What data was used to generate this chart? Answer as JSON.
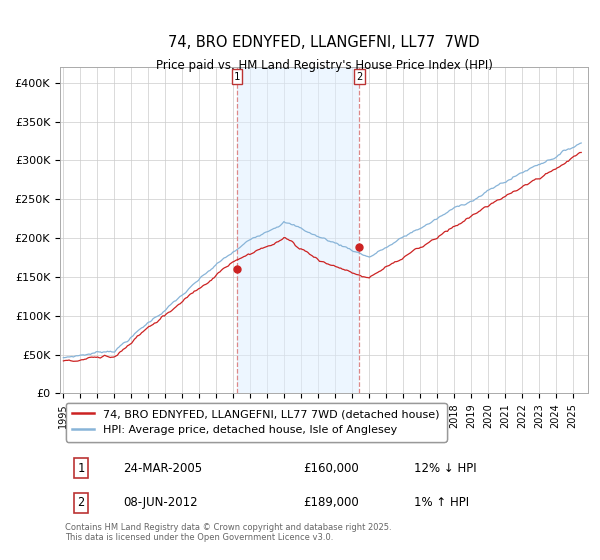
{
  "title": "74, BRO EDNYFED, LLANGEFNI, LL77  7WD",
  "subtitle": "Price paid vs. HM Land Registry's House Price Index (HPI)",
  "ylim": [
    0,
    420000
  ],
  "yticks": [
    0,
    50000,
    100000,
    150000,
    200000,
    250000,
    300000,
    350000,
    400000
  ],
  "ytick_labels": [
    "£0",
    "£50K",
    "£100K",
    "£150K",
    "£200K",
    "£250K",
    "£300K",
    "£350K",
    "£400K"
  ],
  "hpi_color": "#88b4d8",
  "price_color": "#cc2222",
  "shaded_color": "#ddeeff",
  "dashed_color": "#dd8888",
  "marker1_x": 2005.23,
  "marker2_x": 2012.44,
  "marker1_price": 160000,
  "marker2_price": 189000,
  "legend_line1": "74, BRO EDNYFED, LLANGEFNI, LL77 7WD (detached house)",
  "legend_line2": "HPI: Average price, detached house, Isle of Anglesey",
  "entry1_num": "1",
  "entry1_date": "24-MAR-2005",
  "entry1_price": "£160,000",
  "entry1_diff": "12% ↓ HPI",
  "entry2_num": "2",
  "entry2_date": "08-JUN-2012",
  "entry2_price": "£189,000",
  "entry2_diff": "1% ↑ HPI",
  "footnote": "Contains HM Land Registry data © Crown copyright and database right 2025.\nThis data is licensed under the Open Government Licence v3.0.",
  "xlim_start": 1994.8,
  "xlim_end": 2025.9
}
